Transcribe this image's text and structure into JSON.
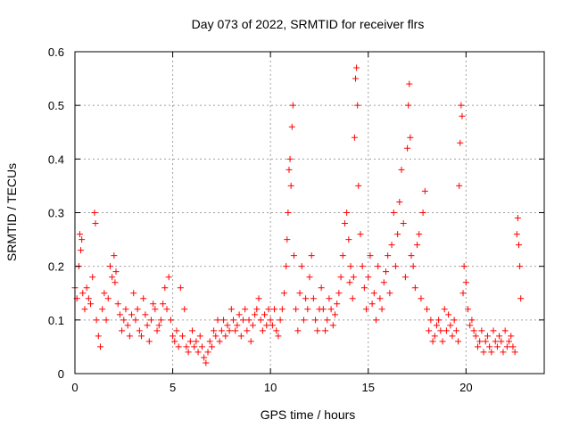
{
  "chart_data": {
    "type": "scatter",
    "title": "Day 073 of 2022, SRMTID for receiver flrs",
    "xlabel": "GPS time / hours",
    "ylabel": "SRMTID / TECUs",
    "xlim": [
      0,
      24
    ],
    "ylim": [
      0,
      0.6
    ],
    "xticks": [
      0,
      5,
      10,
      15,
      20
    ],
    "yticks": [
      0,
      0.1,
      0.2,
      0.3,
      0.4,
      0.5,
      0.6
    ],
    "xtick_labels": [
      "0",
      "5",
      "10",
      "15",
      "20"
    ],
    "ytick_labels": [
      "0",
      "0.1",
      "0.2",
      "0.3",
      "0.4",
      "0.5",
      "0.6"
    ],
    "grid": true,
    "marker": "+",
    "color": "#ff0000",
    "series": [
      {
        "name": "flrs",
        "x": [
          0.0,
          0.1,
          0.2,
          0.25,
          0.3,
          0.35,
          0.4,
          0.5,
          0.6,
          0.7,
          0.8,
          0.9,
          1.0,
          1.05,
          1.1,
          1.2,
          1.3,
          1.4,
          1.5,
          1.6,
          1.7,
          1.8,
          1.9,
          2.0,
          2.05,
          2.1,
          2.2,
          2.3,
          2.4,
          2.5,
          2.6,
          2.7,
          2.8,
          2.9,
          3.0,
          3.1,
          3.2,
          3.3,
          3.4,
          3.5,
          3.6,
          3.7,
          3.8,
          3.9,
          4.0,
          4.1,
          4.2,
          4.3,
          4.4,
          4.5,
          4.6,
          4.7,
          4.8,
          4.9,
          5.0,
          5.1,
          5.2,
          5.3,
          5.4,
          5.5,
          5.6,
          5.7,
          5.8,
          5.9,
          6.0,
          6.1,
          6.2,
          6.3,
          6.4,
          6.5,
          6.6,
          6.7,
          6.8,
          6.9,
          7.0,
          7.1,
          7.2,
          7.3,
          7.4,
          7.5,
          7.6,
          7.7,
          7.8,
          7.9,
          8.0,
          8.1,
          8.2,
          8.3,
          8.4,
          8.5,
          8.6,
          8.7,
          8.8,
          8.9,
          9.0,
          9.1,
          9.2,
          9.3,
          9.4,
          9.5,
          9.6,
          9.7,
          9.8,
          9.9,
          10.0,
          10.1,
          10.2,
          10.3,
          10.4,
          10.5,
          10.6,
          10.7,
          10.8,
          10.85,
          10.9,
          10.95,
          11.0,
          11.05,
          11.1,
          11.15,
          11.2,
          11.3,
          11.4,
          11.5,
          11.6,
          11.7,
          11.8,
          11.9,
          12.0,
          12.1,
          12.2,
          12.3,
          12.4,
          12.5,
          12.6,
          12.7,
          12.8,
          12.9,
          13.0,
          13.1,
          13.2,
          13.3,
          13.4,
          13.5,
          13.6,
          13.7,
          13.8,
          13.9,
          14.0,
          14.05,
          14.1,
          14.2,
          14.25,
          14.3,
          14.35,
          14.4,
          14.45,
          14.5,
          14.6,
          14.7,
          14.8,
          14.9,
          15.0,
          15.1,
          15.2,
          15.3,
          15.4,
          15.5,
          15.6,
          15.7,
          15.8,
          15.9,
          16.0,
          16.1,
          16.2,
          16.3,
          16.4,
          16.5,
          16.6,
          16.7,
          16.8,
          16.9,
          17.0,
          17.05,
          17.1,
          17.15,
          17.2,
          17.3,
          17.4,
          17.5,
          17.6,
          17.7,
          17.8,
          17.9,
          18.0,
          18.1,
          18.2,
          18.3,
          18.4,
          18.5,
          18.6,
          18.7,
          18.8,
          18.9,
          19.0,
          19.1,
          19.2,
          19.3,
          19.4,
          19.5,
          19.6,
          19.65,
          19.7,
          19.75,
          19.8,
          19.85,
          19.9,
          20.0,
          20.1,
          20.2,
          20.3,
          20.4,
          20.5,
          20.6,
          20.7,
          20.8,
          20.9,
          21.0,
          21.1,
          21.2,
          21.3,
          21.4,
          21.5,
          21.6,
          21.7,
          21.8,
          21.9,
          22.0,
          22.1,
          22.2,
          22.3,
          22.4,
          22.5,
          22.6,
          22.65,
          22.7,
          22.75,
          22.8
        ],
        "y": [
          0.16,
          0.14,
          0.2,
          0.26,
          0.23,
          0.25,
          0.15,
          0.12,
          0.16,
          0.14,
          0.13,
          0.18,
          0.3,
          0.28,
          0.1,
          0.07,
          0.05,
          0.12,
          0.15,
          0.1,
          0.14,
          0.2,
          0.18,
          0.22,
          0.17,
          0.19,
          0.13,
          0.11,
          0.08,
          0.1,
          0.12,
          0.09,
          0.07,
          0.11,
          0.15,
          0.1,
          0.12,
          0.08,
          0.07,
          0.14,
          0.11,
          0.09,
          0.06,
          0.1,
          0.13,
          0.12,
          0.08,
          0.09,
          0.1,
          0.13,
          0.16,
          0.12,
          0.18,
          0.1,
          0.07,
          0.06,
          0.08,
          0.05,
          0.16,
          0.07,
          0.12,
          0.05,
          0.04,
          0.06,
          0.08,
          0.05,
          0.06,
          0.04,
          0.07,
          0.05,
          0.03,
          0.02,
          0.04,
          0.06,
          0.05,
          0.08,
          0.07,
          0.1,
          0.06,
          0.08,
          0.1,
          0.07,
          0.09,
          0.08,
          0.12,
          0.1,
          0.08,
          0.09,
          0.11,
          0.07,
          0.1,
          0.12,
          0.08,
          0.1,
          0.06,
          0.09,
          0.11,
          0.12,
          0.14,
          0.1,
          0.08,
          0.11,
          0.09,
          0.12,
          0.1,
          0.09,
          0.12,
          0.08,
          0.07,
          0.1,
          0.12,
          0.15,
          0.2,
          0.25,
          0.3,
          0.38,
          0.4,
          0.35,
          0.46,
          0.5,
          0.22,
          0.12,
          0.08,
          0.15,
          0.2,
          0.1,
          0.14,
          0.12,
          0.18,
          0.22,
          0.14,
          0.1,
          0.08,
          0.12,
          0.16,
          0.12,
          0.08,
          0.1,
          0.14,
          0.12,
          0.09,
          0.11,
          0.13,
          0.15,
          0.18,
          0.22,
          0.28,
          0.3,
          0.25,
          0.17,
          0.2,
          0.14,
          0.18,
          0.44,
          0.55,
          0.57,
          0.5,
          0.35,
          0.26,
          0.2,
          0.16,
          0.12,
          0.18,
          0.22,
          0.13,
          0.15,
          0.1,
          0.2,
          0.14,
          0.12,
          0.17,
          0.19,
          0.22,
          0.15,
          0.24,
          0.3,
          0.2,
          0.26,
          0.32,
          0.38,
          0.28,
          0.18,
          0.42,
          0.5,
          0.54,
          0.44,
          0.22,
          0.2,
          0.16,
          0.24,
          0.26,
          0.14,
          0.3,
          0.34,
          0.12,
          0.08,
          0.1,
          0.06,
          0.07,
          0.09,
          0.1,
          0.08,
          0.06,
          0.12,
          0.08,
          0.11,
          0.09,
          0.07,
          0.1,
          0.08,
          0.06,
          0.35,
          0.43,
          0.5,
          0.48,
          0.15,
          0.2,
          0.17,
          0.12,
          0.09,
          0.1,
          0.08,
          0.07,
          0.05,
          0.06,
          0.08,
          0.04,
          0.06,
          0.07,
          0.05,
          0.04,
          0.08,
          0.06,
          0.05,
          0.07,
          0.06,
          0.04,
          0.08,
          0.05,
          0.06,
          0.07,
          0.05,
          0.04,
          0.26,
          0.29,
          0.24,
          0.2,
          0.14
        ]
      }
    ]
  }
}
